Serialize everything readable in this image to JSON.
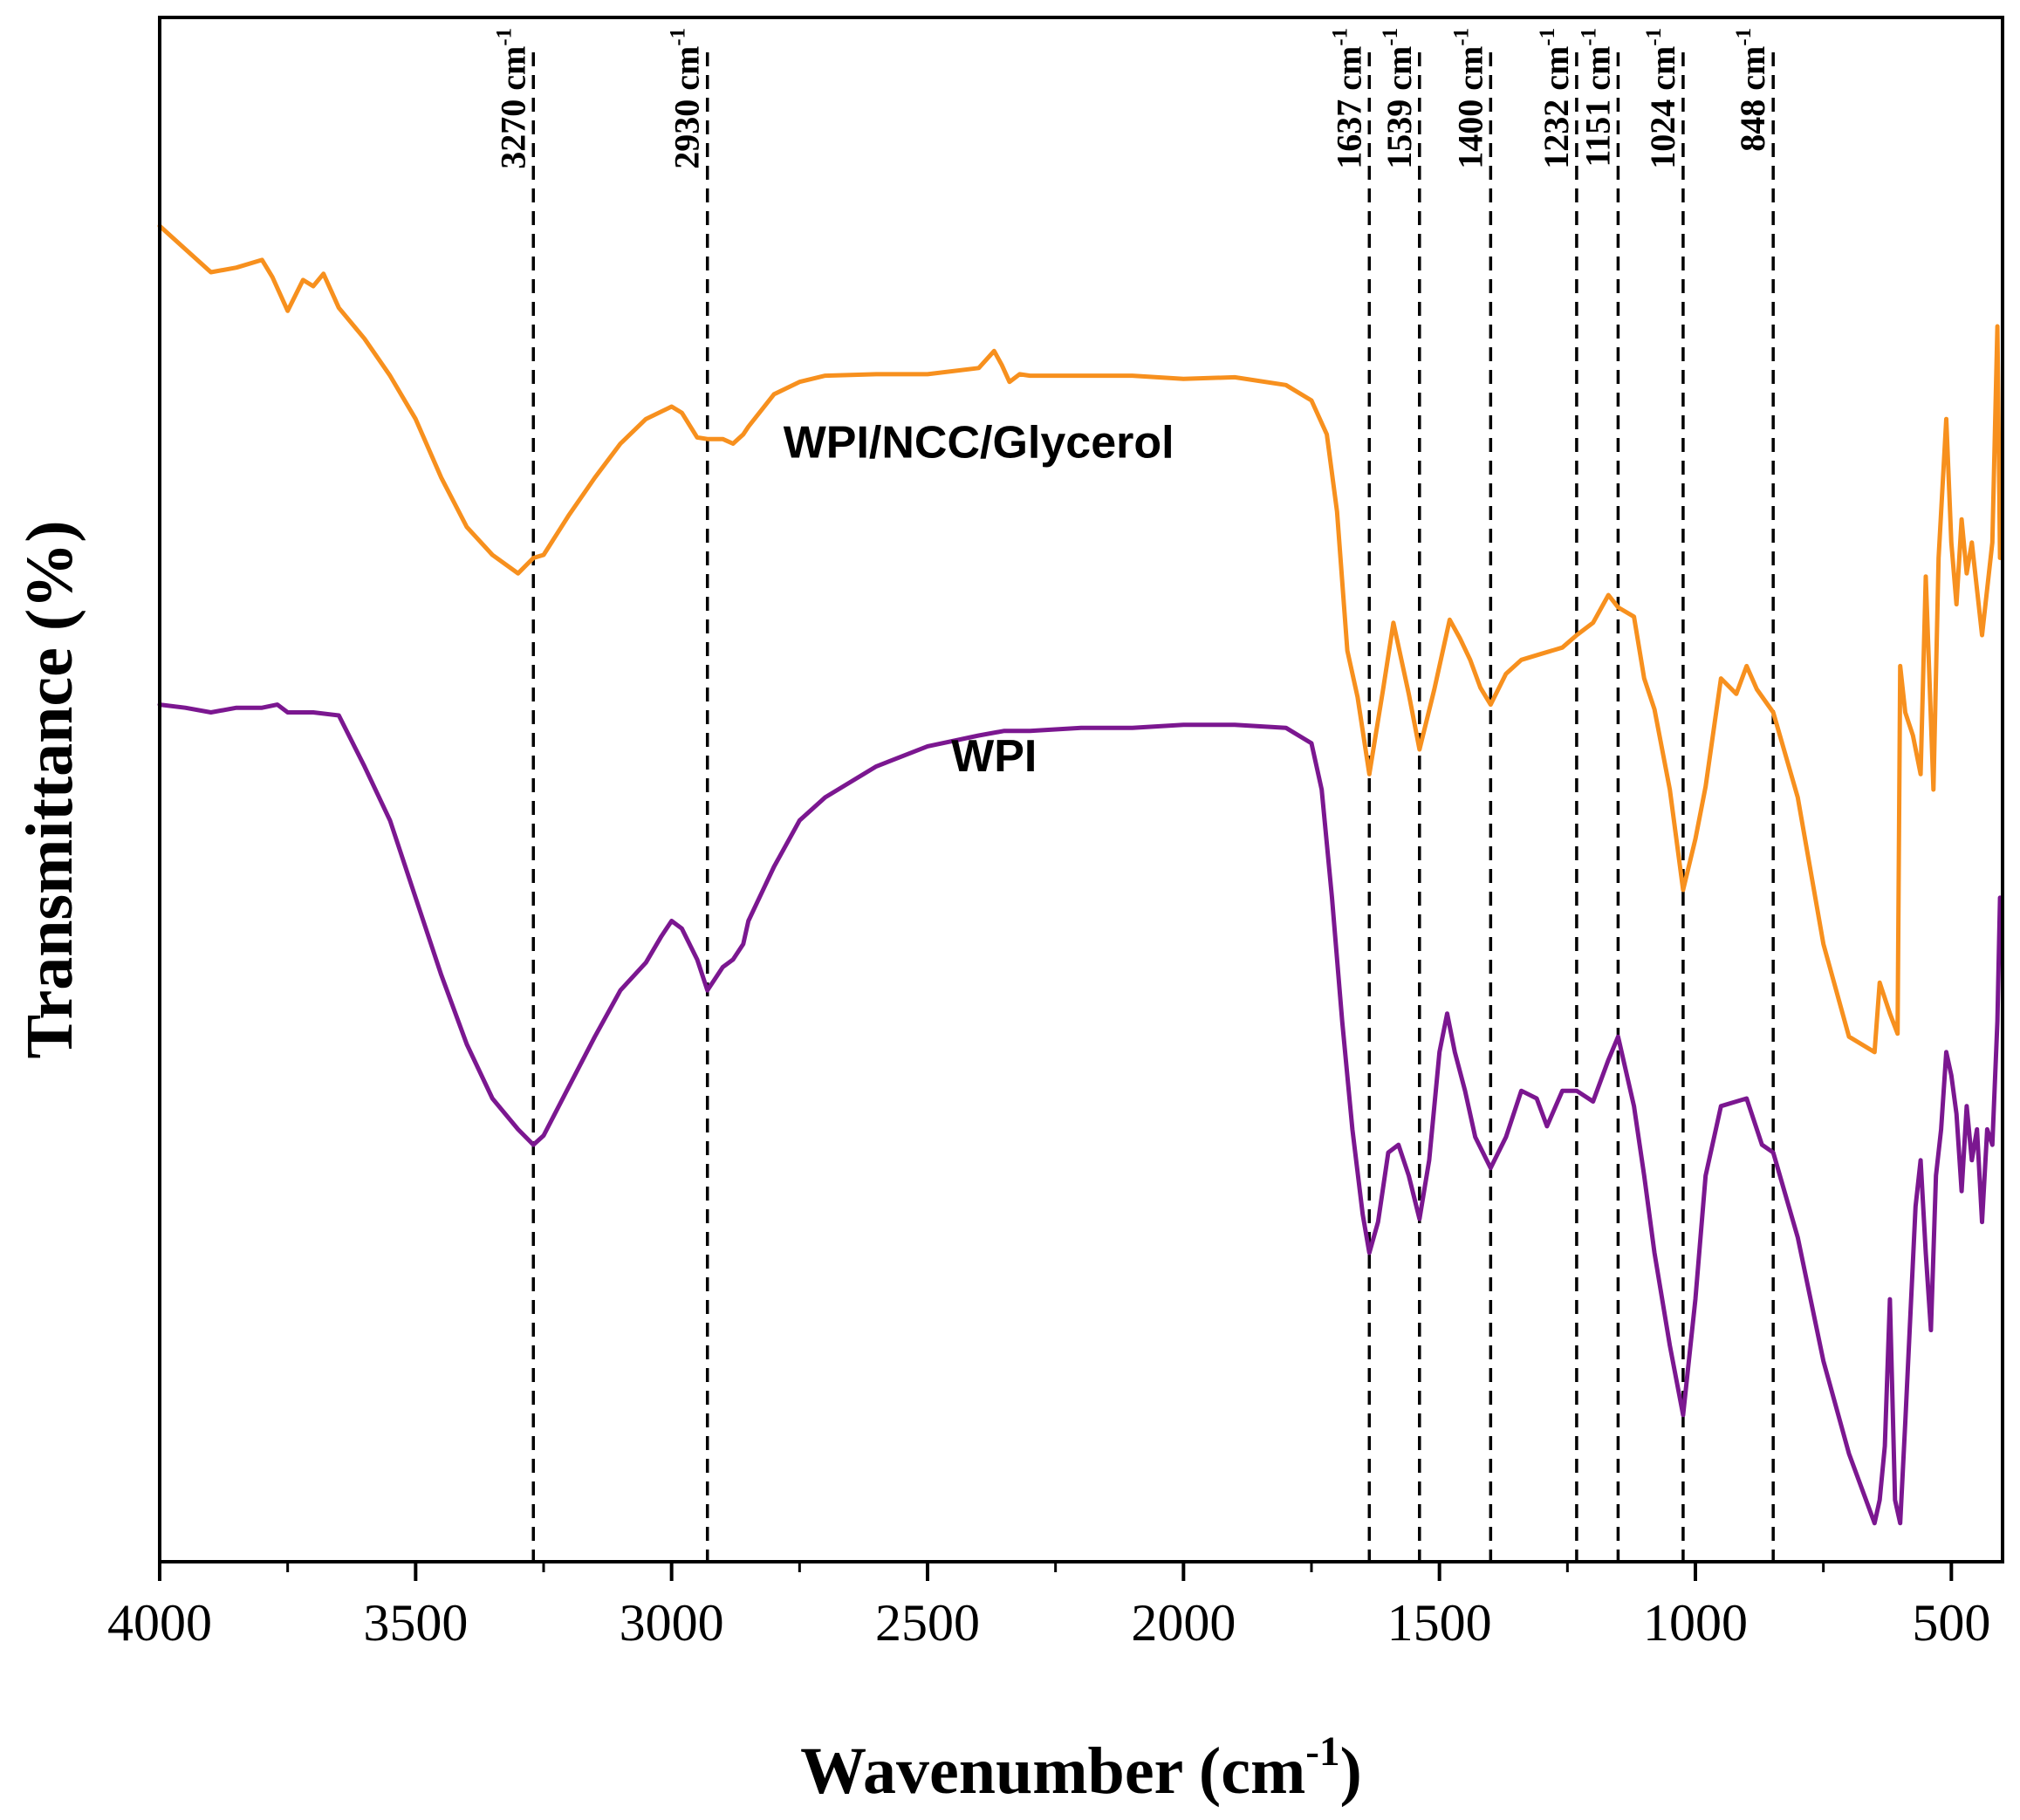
{
  "chart_data": {
    "type": "line",
    "title": "",
    "xlabel": "Wavenumber (cm",
    "xlabel_sup": "-1",
    "xlabel_tail": ")",
    "ylabel": "Transmittance (%)",
    "xlim": [
      4000,
      400
    ],
    "ylim": [
      0,
      100
    ],
    "x_reversed": true,
    "y_ticks_shown": false,
    "xticks": [
      4000,
      3500,
      3000,
      2500,
      2000,
      1500,
      1000,
      500
    ],
    "xtick_labels": [
      "4000",
      "3500",
      "3000",
      "2500",
      "2000",
      "1500",
      "1000",
      "500"
    ],
    "unit_text": "cm",
    "unit_sup": "-1",
    "series": [
      {
        "name": "WPI/NCC/Glycerol",
        "color": "#F7901E",
        "label_x": 2400,
        "label_y": 71.5,
        "x": [
          4000,
          3950,
          3900,
          3850,
          3800,
          3780,
          3750,
          3720,
          3700,
          3680,
          3650,
          3620,
          3600,
          3550,
          3500,
          3450,
          3400,
          3350,
          3300,
          3270,
          3250,
          3200,
          3150,
          3100,
          3050,
          3000,
          2980,
          2950,
          2930,
          2900,
          2880,
          2860,
          2850,
          2800,
          2750,
          2700,
          2600,
          2500,
          2400,
          2370,
          2355,
          2340,
          2320,
          2300,
          2200,
          2100,
          2000,
          1900,
          1800,
          1750,
          1720,
          1700,
          1680,
          1660,
          1637,
          1610,
          1590,
          1560,
          1539,
          1510,
          1480,
          1460,
          1440,
          1420,
          1400,
          1370,
          1340,
          1300,
          1260,
          1232,
          1200,
          1170,
          1151,
          1120,
          1100,
          1080,
          1050,
          1024,
          1000,
          980,
          950,
          920,
          900,
          880,
          848,
          800,
          750,
          700,
          650,
          640,
          620,
          605,
          600,
          590,
          575,
          560,
          550,
          535,
          525,
          510,
          500,
          490,
          480,
          470,
          460,
          440,
          430,
          420,
          410,
          405
        ],
        "y": [
          86.5,
          85.0,
          83.5,
          83.8,
          84.3,
          83.2,
          81.0,
          83.0,
          82.6,
          83.4,
          81.2,
          80.0,
          79.2,
          76.8,
          74.0,
          70.2,
          67.0,
          65.2,
          64.0,
          65.0,
          65.2,
          67.8,
          70.2,
          72.4,
          74.0,
          74.8,
          74.4,
          72.8,
          72.7,
          72.7,
          72.4,
          73.0,
          73.5,
          75.6,
          76.4,
          76.8,
          76.9,
          76.9,
          77.3,
          78.4,
          77.5,
          76.4,
          76.9,
          76.8,
          76.8,
          76.8,
          76.6,
          76.7,
          76.2,
          75.2,
          73.0,
          68.0,
          59.0,
          56.0,
          51.0,
          56.5,
          60.8,
          56.2,
          52.6,
          56.5,
          61.0,
          59.8,
          58.4,
          56.6,
          55.5,
          57.5,
          58.4,
          58.8,
          59.2,
          60.0,
          60.8,
          62.6,
          61.8,
          61.2,
          57.2,
          55.2,
          50.0,
          43.5,
          46.8,
          50.2,
          57.2,
          56.2,
          58.0,
          56.5,
          55.0,
          49.5,
          40.0,
          34.0,
          33.0,
          37.5,
          35.5,
          34.2,
          58.0,
          55.0,
          53.5,
          51.0,
          63.8,
          50.0,
          65.0,
          74.0,
          66.0,
          62.0,
          67.5,
          64.0,
          66.0,
          60.0,
          63.0,
          66.0,
          80.0,
          65.0
        ]
      },
      {
        "name": "WPI",
        "color": "#7B1790",
        "label_x": 2370,
        "label_y": 51.2,
        "x": [
          4000,
          3950,
          3900,
          3850,
          3800,
          3770,
          3750,
          3700,
          3650,
          3600,
          3550,
          3500,
          3450,
          3400,
          3350,
          3300,
          3270,
          3250,
          3200,
          3150,
          3100,
          3050,
          3020,
          3000,
          2980,
          2950,
          2930,
          2900,
          2880,
          2860,
          2850,
          2800,
          2750,
          2700,
          2650,
          2600,
          2500,
          2400,
          2350,
          2300,
          2200,
          2100,
          2000,
          1900,
          1800,
          1750,
          1730,
          1710,
          1690,
          1670,
          1650,
          1637,
          1620,
          1600,
          1580,
          1560,
          1539,
          1520,
          1500,
          1485,
          1470,
          1450,
          1430,
          1400,
          1370,
          1340,
          1310,
          1290,
          1260,
          1232,
          1200,
          1170,
          1151,
          1120,
          1100,
          1080,
          1050,
          1024,
          1000,
          980,
          950,
          920,
          900,
          870,
          848,
          800,
          750,
          700,
          650,
          640,
          630,
          620,
          610,
          600,
          590,
          580,
          570,
          560,
          550,
          540,
          530,
          520,
          510,
          500,
          490,
          480,
          470,
          460,
          450,
          440,
          430,
          420,
          410,
          405
        ],
        "y": [
          55.5,
          55.3,
          55.0,
          55.3,
          55.3,
          55.5,
          55.0,
          55.0,
          54.8,
          51.5,
          48.0,
          43.0,
          38.0,
          33.5,
          30.0,
          28.0,
          27.0,
          27.6,
          30.8,
          34.0,
          37.0,
          38.8,
          40.5,
          41.5,
          41.0,
          39.0,
          37.0,
          38.5,
          39.0,
          40.0,
          41.5,
          45.0,
          48.0,
          49.5,
          50.5,
          51.5,
          52.8,
          53.5,
          53.8,
          53.8,
          54.0,
          54.0,
          54.2,
          54.2,
          54.0,
          53.0,
          50.0,
          43.0,
          35.0,
          28.0,
          22.5,
          20.0,
          22.0,
          26.5,
          27.0,
          25.0,
          22.2,
          26.0,
          33.0,
          35.5,
          33.0,
          30.5,
          27.5,
          25.5,
          27.5,
          30.5,
          30.0,
          28.2,
          30.5,
          30.5,
          29.8,
          32.5,
          34.0,
          29.5,
          25.0,
          20.0,
          14.0,
          9.5,
          17.0,
          25.0,
          29.5,
          29.8,
          30.0,
          27.0,
          26.5,
          21.0,
          13.0,
          7.0,
          2.5,
          4.0,
          7.5,
          17.0,
          4.0,
          2.5,
          9.0,
          16.0,
          23.0,
          26.0,
          20.0,
          15.0,
          25.0,
          28.0,
          33.0,
          31.5,
          29.0,
          24.0,
          29.5,
          26.0,
          28.0,
          22.0,
          28.0,
          27.0,
          35.0,
          43.0
        ]
      }
    ],
    "annotations": [
      {
        "x": 3270,
        "label": "3270 cm",
        "sup": "-1"
      },
      {
        "x": 2930,
        "label": "2930 cm",
        "sup": "-1"
      },
      {
        "x": 1637,
        "label": "1637 cm",
        "sup": "-1"
      },
      {
        "x": 1539,
        "label": "1539 cm",
        "sup": "-1"
      },
      {
        "x": 1400,
        "label": "1400 cm",
        "sup": "-1"
      },
      {
        "x": 1232,
        "label": "1232 cm",
        "sup": "-1"
      },
      {
        "x": 1151,
        "label": "1151 cm",
        "sup": "-1"
      },
      {
        "x": 1024,
        "label": "1024 cm",
        "sup": "-1"
      },
      {
        "x": 848,
        "label": "848 cm",
        "sup": "-1"
      }
    ]
  }
}
